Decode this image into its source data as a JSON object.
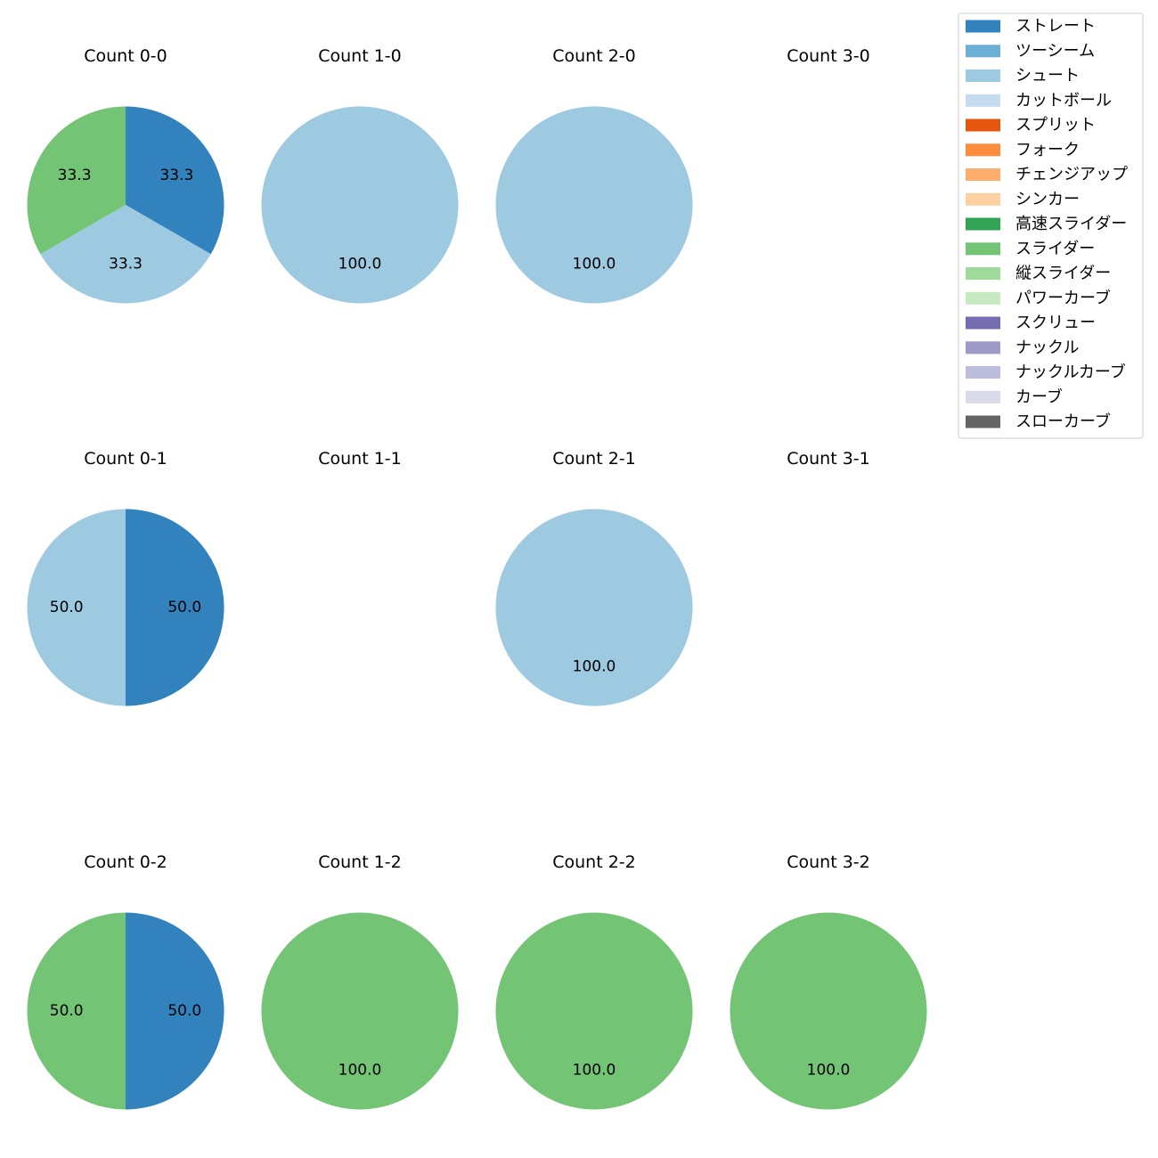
{
  "chart_data": {
    "type": "pie",
    "value_format": "percent (one decimal)",
    "categories": [
      {
        "name": "ストレート",
        "color": "#3182bd"
      },
      {
        "name": "ツーシーム",
        "color": "#6baed6"
      },
      {
        "name": "シュート",
        "color": "#9ecae1"
      },
      {
        "name": "カットボール",
        "color": "#c6dbef"
      },
      {
        "name": "スプリット",
        "color": "#e6550d"
      },
      {
        "name": "フォーク",
        "color": "#fd8d3c"
      },
      {
        "name": "チェンジアップ",
        "color": "#fdae6b"
      },
      {
        "name": "シンカー",
        "color": "#fdd0a2"
      },
      {
        "name": "高速スライダー",
        "color": "#31a354"
      },
      {
        "name": "スライダー",
        "color": "#74c476"
      },
      {
        "name": "縦スライダー",
        "color": "#a1d99b"
      },
      {
        "name": "パワーカーブ",
        "color": "#c7e9c0"
      },
      {
        "name": "スクリュー",
        "color": "#756bb1"
      },
      {
        "name": "ナックル",
        "color": "#9e9ac8"
      },
      {
        "name": "ナックルカーブ",
        "color": "#bcbddc"
      },
      {
        "name": "カーブ",
        "color": "#dadaeb"
      },
      {
        "name": "スローカーブ",
        "color": "#636363"
      }
    ],
    "legend_position": "top-right",
    "charts": [
      {
        "title": "Count 0-0",
        "slices": [
          {
            "category": "ストレート",
            "value": 33.3
          },
          {
            "category": "シュート",
            "value": 33.3
          },
          {
            "category": "スライダー",
            "value": 33.3
          }
        ]
      },
      {
        "title": "Count 1-0",
        "slices": [
          {
            "category": "シュート",
            "value": 100.0
          }
        ]
      },
      {
        "title": "Count 2-0",
        "slices": [
          {
            "category": "シュート",
            "value": 100.0
          }
        ]
      },
      {
        "title": "Count 3-0",
        "slices": []
      },
      {
        "title": "Count 0-1",
        "slices": [
          {
            "category": "ストレート",
            "value": 50.0
          },
          {
            "category": "シュート",
            "value": 50.0
          }
        ]
      },
      {
        "title": "Count 1-1",
        "slices": []
      },
      {
        "title": "Count 2-1",
        "slices": [
          {
            "category": "シュート",
            "value": 100.0
          }
        ]
      },
      {
        "title": "Count 3-1",
        "slices": []
      },
      {
        "title": "Count 0-2",
        "slices": [
          {
            "category": "ストレート",
            "value": 50.0
          },
          {
            "category": "スライダー",
            "value": 50.0
          }
        ]
      },
      {
        "title": "Count 1-2",
        "slices": [
          {
            "category": "スライダー",
            "value": 100.0
          }
        ]
      },
      {
        "title": "Count 2-2",
        "slices": [
          {
            "category": "スライダー",
            "value": 100.0
          }
        ]
      },
      {
        "title": "Count 3-2",
        "slices": [
          {
            "category": "スライダー",
            "value": 100.0
          }
        ]
      }
    ]
  }
}
